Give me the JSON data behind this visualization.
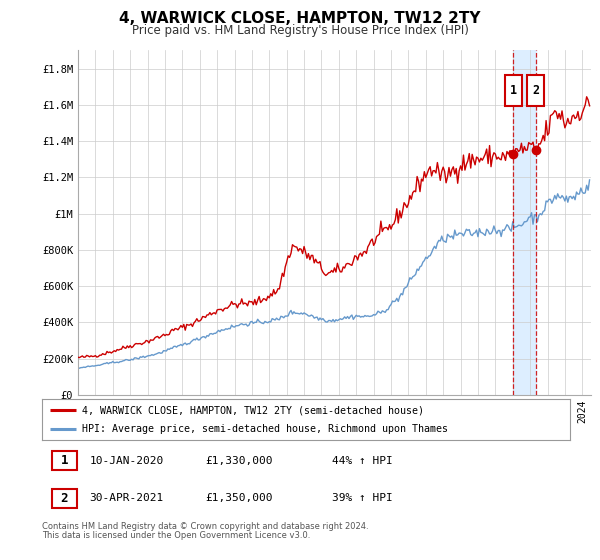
{
  "title": "4, WARWICK CLOSE, HAMPTON, TW12 2TY",
  "subtitle": "Price paid vs. HM Land Registry's House Price Index (HPI)",
  "legend_line1": "4, WARWICK CLOSE, HAMPTON, TW12 2TY (semi-detached house)",
  "legend_line2": "HPI: Average price, semi-detached house, Richmond upon Thames",
  "footnote1": "Contains HM Land Registry data © Crown copyright and database right 2024.",
  "footnote2": "This data is licensed under the Open Government Licence v3.0.",
  "marker1_label": "10-JAN-2020",
  "marker1_price": "£1,330,000",
  "marker1_hpi": "44% ↑ HPI",
  "marker2_label": "30-APR-2021",
  "marker2_price": "£1,350,000",
  "marker2_hpi": "39% ↑ HPI",
  "red_color": "#cc0000",
  "blue_color": "#6699cc",
  "shaded_color": "#ddeeff",
  "dashed_color": "#cc0000",
  "background_color": "#ffffff",
  "grid_color": "#cccccc",
  "yticks": [
    0,
    200000,
    400000,
    600000,
    800000,
    1000000,
    1200000,
    1400000,
    1600000,
    1800000
  ],
  "ytick_labels": [
    "£0",
    "£200K",
    "£400K",
    "£600K",
    "£800K",
    "£1M",
    "£1.2M",
    "£1.4M",
    "£1.6M",
    "£1.8M"
  ],
  "marker1_x": 2020.038,
  "marker2_x": 2021.33,
  "marker1_value": 1330000,
  "marker2_value": 1350000,
  "xlim_left": 1995.0,
  "xlim_right": 2024.5,
  "ylim_top": 1900000
}
